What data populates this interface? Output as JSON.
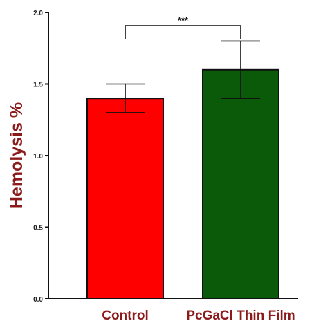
{
  "chart_data": {
    "type": "bar",
    "categories": [
      "Control",
      "PcGaCl Thin Film"
    ],
    "values": [
      1.4,
      1.6
    ],
    "errors": [
      0.1,
      0.2
    ],
    "bar_colors": [
      "#ff0000",
      "#0a5a0a"
    ],
    "title": "",
    "xlabel": "",
    "ylabel": "Hemolysis %",
    "ylabel_color": "#8b1a1a",
    "category_label_color": "#8b1a1a",
    "ylim": [
      0.0,
      2.0
    ],
    "yticks": [
      0.0,
      0.5,
      1.0,
      1.5,
      2.0
    ],
    "ytick_labels": [
      "0.0",
      "0.5",
      "1.0",
      "1.5",
      "2.0"
    ],
    "grid": false,
    "significance": {
      "between": [
        "Control",
        "PcGaCl Thin Film"
      ],
      "label": "***"
    }
  }
}
